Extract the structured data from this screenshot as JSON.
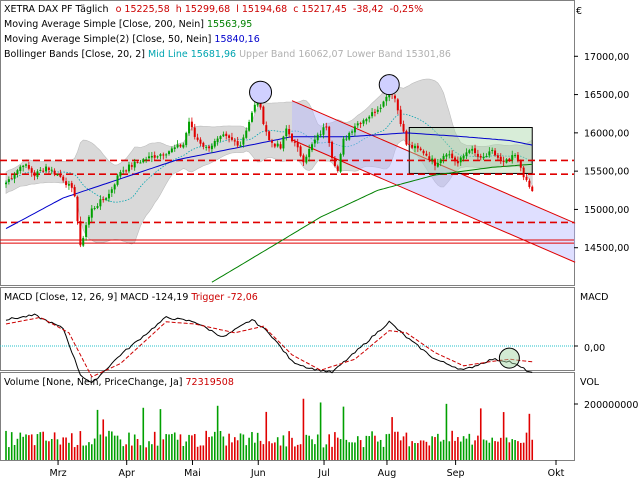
{
  "header": {
    "instrument": "XETRA DAX PF",
    "period": "Täglich",
    "open_label": "o",
    "open": "15225,58",
    "high_label": "h",
    "high": "15299,68",
    "low_label": "l",
    "low": "15194,68",
    "close_label": "c",
    "close": "15217,45",
    "change": "-38,42",
    "change_pct": "-0,25%",
    "corner_icon": "euro-icon",
    "corner_symbol": "€"
  },
  "indicators": {
    "sma200": {
      "label": "Moving Average Simple",
      "params": "[Close, 200, Nein]",
      "value": "15563,95"
    },
    "sma50": {
      "label": "Moving Average Simple(2)",
      "params": "[Close, 50, Nein]",
      "value": "15840,16"
    },
    "bollinger": {
      "label": "Bollinger Bands",
      "params": "[Close, 20, 2]",
      "mid_label": "Mid Line",
      "mid": "15681,96",
      "upper_label": "Upper Band",
      "upper": "16062,07",
      "lower_label": "Lower Band",
      "lower": "15301,86"
    }
  },
  "macd_panel": {
    "label": "MACD",
    "params": "[Close, 12, 26, 9]",
    "value_label": "MACD",
    "value": "-124,19",
    "trigger_label": "Trigger",
    "trigger": "-72,06",
    "axis_title": "MACD",
    "zero_tick": "0,00"
  },
  "volume_panel": {
    "label": "Volume",
    "params": "[None, Nein, PriceChange, Ja]",
    "value": "72319508",
    "axis_title": "VOL",
    "tick": "200000000"
  },
  "colors": {
    "up": "#00a000",
    "down": "#e00000",
    "sma200": "#008000",
    "sma50": "#0000cc",
    "band_fill": "#d9d9d9",
    "mid_line": "#00a5b0",
    "channel": "#e00000",
    "zero_line": "#20c0c8"
  },
  "chart_data": {
    "type": "candlestick",
    "x_axis_months": [
      "Mrz",
      "Apr",
      "Mai",
      "Jun",
      "Jul",
      "Aug",
      "Sep",
      "Okt"
    ],
    "y_ticks": [
      "14500,00",
      "15000,00",
      "15500,00",
      "16000,00",
      "16500,00",
      "17000,00"
    ],
    "ylim": [
      14000,
      17500
    ],
    "price_waypoints": [
      [
        0,
        15350
      ],
      [
        6,
        15600
      ],
      [
        10,
        15450
      ],
      [
        14,
        15560
      ],
      [
        20,
        15400
      ],
      [
        24,
        15200
      ],
      [
        26,
        14500
      ],
      [
        28,
        14800
      ],
      [
        30,
        15000
      ],
      [
        36,
        15200
      ],
      [
        40,
        15500
      ],
      [
        48,
        15650
      ],
      [
        56,
        15750
      ],
      [
        62,
        15850
      ],
      [
        64,
        16150
      ],
      [
        66,
        15950
      ],
      [
        70,
        15800
      ],
      [
        76,
        15950
      ],
      [
        82,
        15850
      ],
      [
        86,
        16250
      ],
      [
        88,
        16450
      ],
      [
        90,
        16150
      ],
      [
        92,
        15900
      ],
      [
        96,
        15800
      ],
      [
        98,
        16050
      ],
      [
        104,
        15650
      ],
      [
        108,
        15900
      ],
      [
        112,
        16100
      ],
      [
        114,
        15700
      ],
      [
        116,
        15500
      ],
      [
        118,
        15900
      ],
      [
        122,
        16100
      ],
      [
        128,
        16250
      ],
      [
        132,
        16400
      ],
      [
        134,
        16600
      ],
      [
        136,
        16450
      ],
      [
        140,
        15850
      ],
      [
        146,
        15750
      ],
      [
        150,
        15600
      ],
      [
        154,
        15750
      ],
      [
        158,
        15600
      ],
      [
        162,
        15800
      ],
      [
        166,
        15650
      ],
      [
        170,
        15750
      ],
      [
        174,
        15600
      ],
      [
        178,
        15700
      ],
      [
        180,
        15550
      ],
      [
        182,
        15350
      ],
      [
        184,
        15230
      ]
    ],
    "sma200_waypoints": [
      [
        72,
        14050
      ],
      [
        90,
        14450
      ],
      [
        110,
        14900
      ],
      [
        130,
        15250
      ],
      [
        150,
        15450
      ],
      [
        170,
        15550
      ],
      [
        184,
        15590
      ]
    ],
    "sma50_waypoints": [
      [
        0,
        14750
      ],
      [
        20,
        15150
      ],
      [
        40,
        15400
      ],
      [
        60,
        15650
      ],
      [
        80,
        15800
      ],
      [
        100,
        15950
      ],
      [
        120,
        15950
      ],
      [
        140,
        16000
      ],
      [
        160,
        15950
      ],
      [
        176,
        15900
      ],
      [
        184,
        15840
      ]
    ],
    "resistance_lines": [
      15640,
      15460,
      14830,
      14600,
      14560
    ],
    "trend_channel": {
      "start": [
        100,
        16420
      ],
      "end_upper": [
        199,
        14820
      ],
      "end_lower": [
        199,
        14310
      ]
    },
    "macd": {
      "zero": 0,
      "line_waypoints": [
        [
          0,
          120
        ],
        [
          10,
          140
        ],
        [
          20,
          80
        ],
        [
          26,
          -130
        ],
        [
          30,
          -170
        ],
        [
          40,
          -40
        ],
        [
          56,
          130
        ],
        [
          66,
          110
        ],
        [
          76,
          40
        ],
        [
          86,
          120
        ],
        [
          92,
          60
        ],
        [
          100,
          -70
        ],
        [
          106,
          -100
        ],
        [
          114,
          -120
        ],
        [
          122,
          -30
        ],
        [
          134,
          110
        ],
        [
          140,
          40
        ],
        [
          150,
          -60
        ],
        [
          160,
          -110
        ],
        [
          170,
          -60
        ],
        [
          176,
          -70
        ],
        [
          184,
          -124
        ]
      ],
      "trigger_waypoints": [
        [
          0,
          100
        ],
        [
          12,
          130
        ],
        [
          22,
          60
        ],
        [
          30,
          -140
        ],
        [
          40,
          -80
        ],
        [
          56,
          110
        ],
        [
          66,
          100
        ],
        [
          80,
          60
        ],
        [
          90,
          90
        ],
        [
          100,
          -40
        ],
        [
          110,
          -110
        ],
        [
          122,
          -60
        ],
        [
          134,
          70
        ],
        [
          140,
          60
        ],
        [
          150,
          -30
        ],
        [
          160,
          -90
        ],
        [
          170,
          -70
        ],
        [
          176,
          -60
        ],
        [
          184,
          -72
        ]
      ]
    },
    "volume": {
      "tick_value": 200000000,
      "last": 72319508
    }
  }
}
